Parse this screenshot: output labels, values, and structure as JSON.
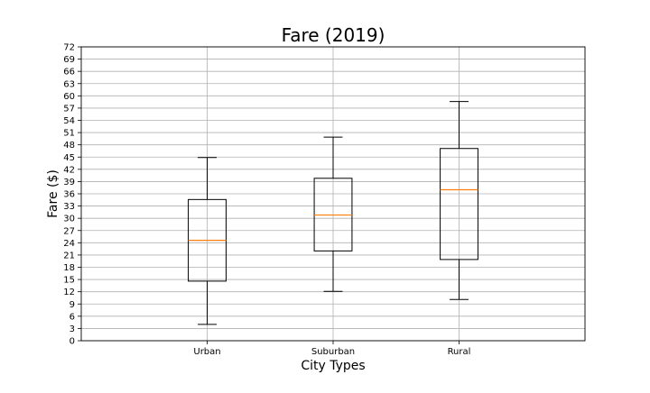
{
  "chart_data": {
    "type": "box",
    "title": "Fare (2019)",
    "xlabel": "City Types",
    "ylabel": "Fare ($)",
    "ylim": [
      0,
      72
    ],
    "yticks": [
      0,
      3,
      6,
      9,
      12,
      15,
      18,
      21,
      24,
      27,
      30,
      33,
      36,
      39,
      42,
      45,
      48,
      51,
      54,
      57,
      60,
      63,
      66,
      69,
      72
    ],
    "categories": [
      "Urban",
      "Suburban",
      "Rural"
    ],
    "boxes": [
      {
        "label": "Urban",
        "whisker_low": 4.0,
        "q1": 14.6,
        "median": 24.6,
        "q3": 34.6,
        "whisker_high": 44.9
      },
      {
        "label": "Suburban",
        "whisker_low": 12.1,
        "q1": 22.0,
        "median": 30.8,
        "q3": 39.8,
        "whisker_high": 49.9
      },
      {
        "label": "Rural",
        "whisker_low": 10.1,
        "q1": 19.9,
        "median": 37.0,
        "q3": 47.1,
        "whisker_high": 58.6
      }
    ],
    "grid": true,
    "colors": {
      "box": "#000000",
      "median": "#ff7f0e",
      "grid": "#b0b0b0"
    }
  }
}
